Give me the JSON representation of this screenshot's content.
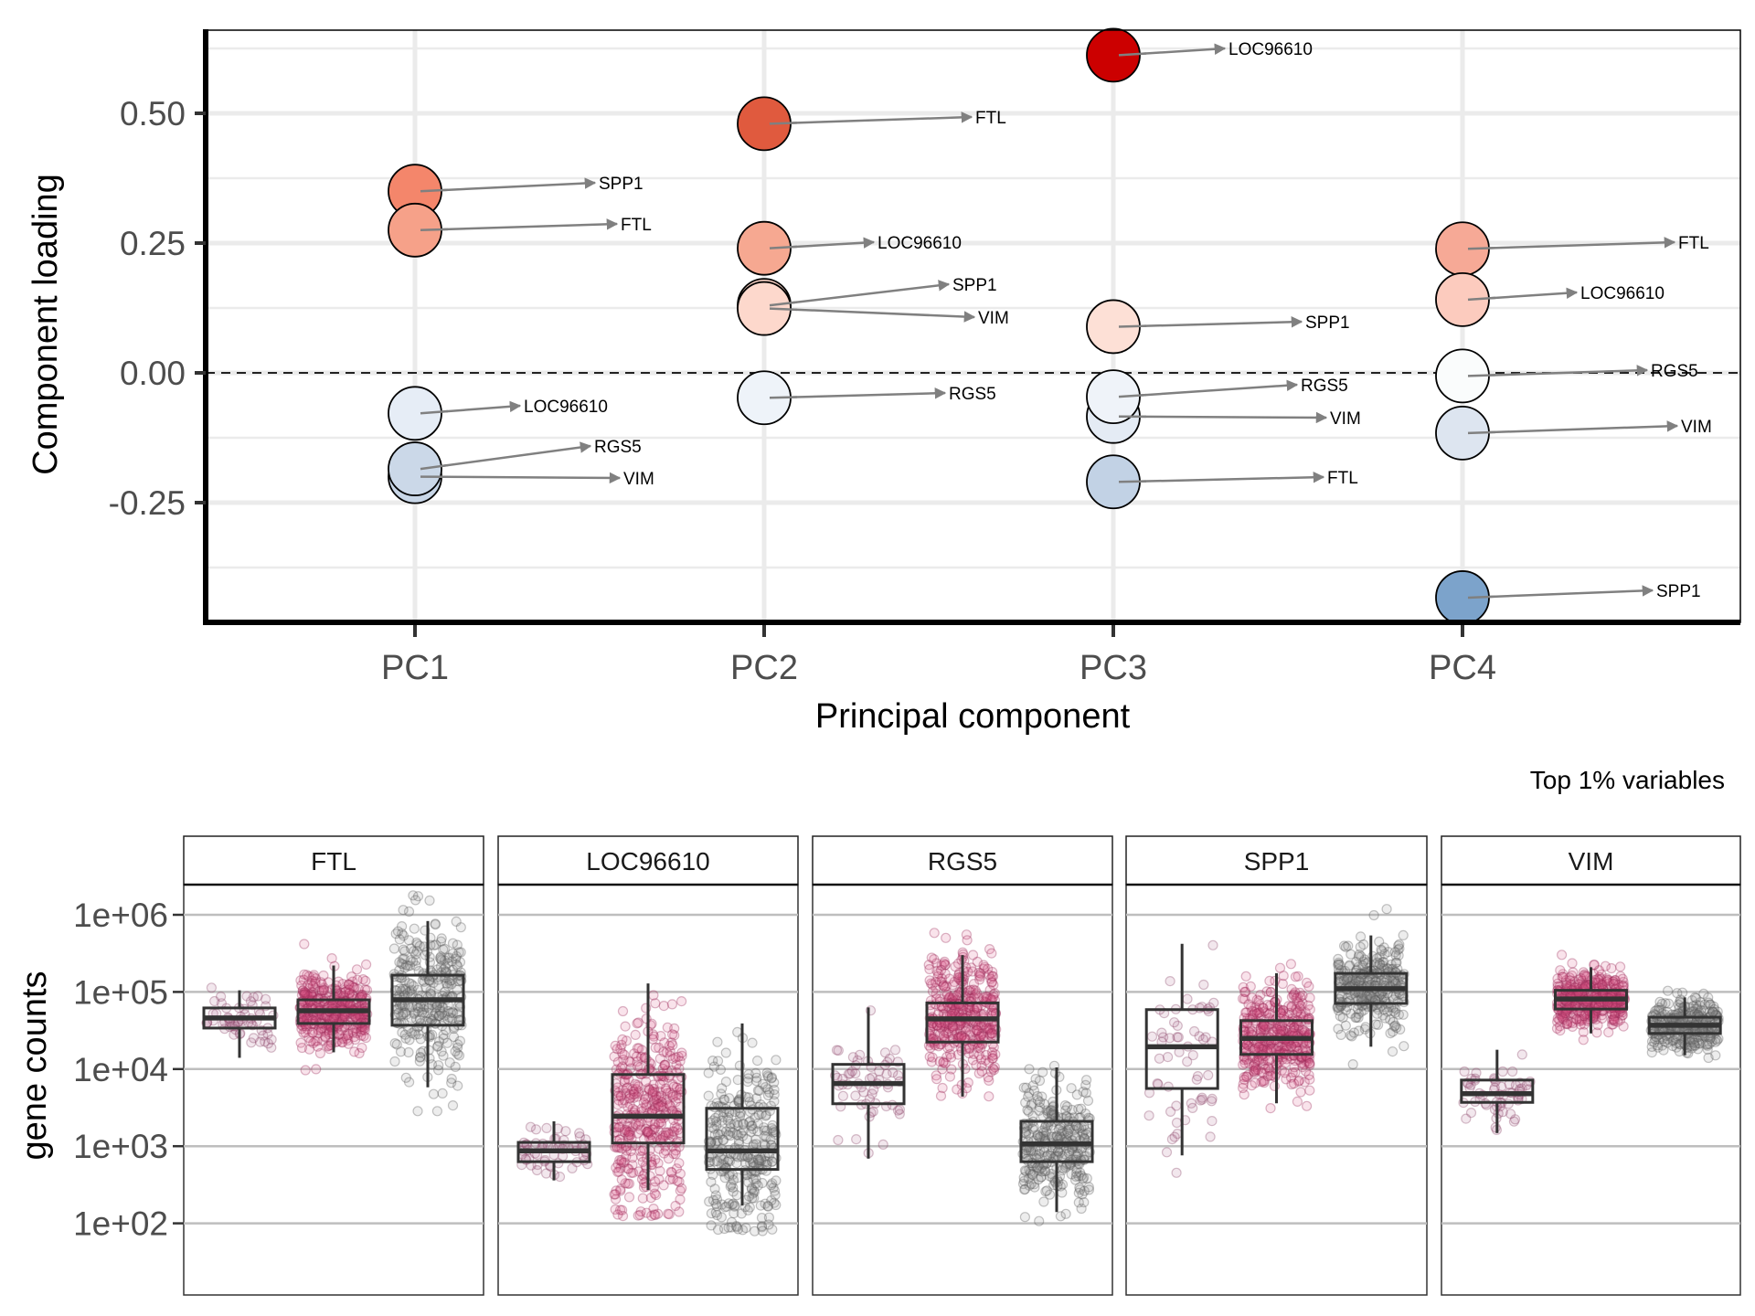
{
  "chart_data": [
    {
      "type": "scatter",
      "title": "",
      "xlabel": "Principal component",
      "ylabel": "Component loading",
      "categories": [
        "PC1",
        "PC2",
        "PC3",
        "PC4"
      ],
      "ylim": [
        -0.48,
        0.68
      ],
      "yticks": [
        0.5,
        0.25,
        0.0,
        -0.25
      ],
      "ytick_labels": [
        "0.50",
        "0.25",
        "0.00",
        "-0.25"
      ],
      "reference_line": {
        "y": 0,
        "style": "dashed"
      },
      "grid": true,
      "series": [
        {
          "pc": "PC1",
          "points": [
            {
              "gene": "SPP1",
              "loading": 0.35,
              "color": "#F4866B"
            },
            {
              "gene": "FTL",
              "loading": 0.275,
              "color": "#F6A189"
            },
            {
              "gene": "LOC96610",
              "loading": -0.078,
              "color": "#E6EDF6"
            },
            {
              "gene": "VIM",
              "loading": -0.2,
              "color": "#C8D6E7"
            },
            {
              "gene": "RGS5",
              "loading": -0.185,
              "color": "#CBD8E8"
            }
          ]
        },
        {
          "pc": "PC2",
          "points": [
            {
              "gene": "FTL",
              "loading": 0.48,
              "color": "#E05A3E"
            },
            {
              "gene": "LOC96610",
              "loading": 0.24,
              "color": "#F6A891"
            },
            {
              "gene": "SPP1",
              "loading": 0.13,
              "color": "#FDD5C8"
            },
            {
              "gene": "VIM",
              "loading": 0.124,
              "color": "#FDD8CC"
            },
            {
              "gene": "RGS5",
              "loading": -0.048,
              "color": "#EEF3F9"
            }
          ]
        },
        {
          "pc": "PC3",
          "points": [
            {
              "gene": "LOC96610",
              "loading": 0.612,
              "color": "#CC0000"
            },
            {
              "gene": "SPP1",
              "loading": 0.089,
              "color": "#FDE0D6"
            },
            {
              "gene": "VIM",
              "loading": -0.084,
              "color": "#E4EBF4"
            },
            {
              "gene": "RGS5",
              "loading": -0.046,
              "color": "#EFF3F9"
            },
            {
              "gene": "FTL",
              "loading": -0.21,
              "color": "#C2D2E5"
            }
          ]
        },
        {
          "pc": "PC4",
          "points": [
            {
              "gene": "FTL",
              "loading": 0.239,
              "color": "#F6A996"
            },
            {
              "gene": "LOC96610",
              "loading": 0.141,
              "color": "#FCCBBE"
            },
            {
              "gene": "RGS5",
              "loading": -0.006,
              "color": "#FAFCFC"
            },
            {
              "gene": "VIM",
              "loading": -0.116,
              "color": "#DDE5F0"
            },
            {
              "gene": "SPP1",
              "loading": -0.433,
              "color": "#7CA3CB"
            }
          ]
        }
      ]
    },
    {
      "type": "box",
      "title": "",
      "caption": "Top 1% variables",
      "xlabel": "",
      "ylabel": "gene counts",
      "yscale": "log10",
      "ylim": [
        10,
        5000000
      ],
      "yticks": [
        1000000,
        100000,
        10000,
        1000,
        100
      ],
      "ytick_labels": [
        "1e+06",
        "1e+05",
        "1e+04",
        "1e+03",
        "1e+02"
      ],
      "grid": true,
      "group_colors": [
        "#B06A8C",
        "#D94F85",
        "#8C8C8C"
      ],
      "facets": [
        {
          "gene": "FTL",
          "groups": [
            {
              "whisker_low": 14000,
              "q1": 34000,
              "median": 46000,
              "q3": 62000,
              "whisker_high": 105000
            },
            {
              "whisker_low": 16500,
              "q1": 39000,
              "median": 57000,
              "q3": 79000,
              "whisker_high": 220000
            },
            {
              "whisker_low": 5800,
              "q1": 37000,
              "median": 79000,
              "q3": 165000,
              "whisker_high": 830000
            }
          ]
        },
        {
          "gene": "LOC96610",
          "groups": [
            {
              "whisker_low": 360,
              "q1": 630,
              "median": 870,
              "q3": 1120,
              "whisker_high": 2100
            },
            {
              "whisker_low": 270,
              "q1": 1100,
              "median": 2450,
              "q3": 8500,
              "whisker_high": 129000
            },
            {
              "whisker_low": 170,
              "q1": 500,
              "median": 870,
              "q3": 3100,
              "whisker_high": 39000
            }
          ]
        },
        {
          "gene": "RGS5",
          "groups": [
            {
              "whisker_low": 690,
              "q1": 3550,
              "median": 6500,
              "q3": 11500,
              "whisker_high": 63000
            },
            {
              "whisker_low": 4400,
              "q1": 22400,
              "median": 44700,
              "q3": 72000,
              "whisker_high": 300000
            },
            {
              "whisker_low": 140,
              "q1": 630,
              "median": 1070,
              "q3": 2100,
              "whisker_high": 10500
            }
          ]
        },
        {
          "gene": "SPP1",
          "groups": [
            {
              "whisker_low": 760,
              "q1": 5600,
              "median": 19500,
              "q3": 59000,
              "whisker_high": 420000
            },
            {
              "whisker_low": 3600,
              "q1": 15500,
              "median": 25000,
              "q3": 42500,
              "whisker_high": 175000
            },
            {
              "whisker_low": 19500,
              "q1": 71000,
              "median": 110000,
              "q3": 174000,
              "whisker_high": 540000
            }
          ]
        },
        {
          "gene": "VIM",
          "groups": [
            {
              "whisker_low": 1480,
              "q1": 3700,
              "median": 4800,
              "q3": 7200,
              "whisker_high": 17800
            },
            {
              "whisker_low": 29000,
              "q1": 60000,
              "median": 81000,
              "q3": 105000,
              "whisker_high": 209000
            },
            {
              "whisker_low": 15100,
              "q1": 29000,
              "median": 37000,
              "q3": 47000,
              "whisker_high": 85000
            }
          ]
        }
      ]
    }
  ]
}
